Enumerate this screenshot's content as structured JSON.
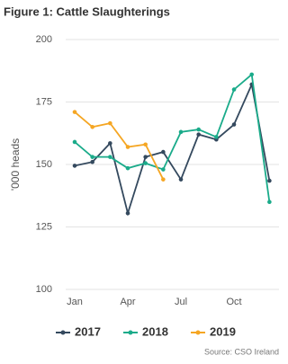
{
  "chart_data": {
    "type": "line",
    "title": "Figure 1: Cattle Slaughterings",
    "y_label": "'000 heads",
    "categories": [
      "Jan",
      null,
      null,
      "Apr",
      null,
      null,
      "Jul",
      null,
      null,
      "Oct",
      null,
      null
    ],
    "series": [
      {
        "name": "2017",
        "color": "#34495e",
        "values": [
          149.5,
          151,
          158.5,
          130.5,
          153,
          155,
          144,
          162,
          160,
          166,
          182,
          143.5
        ]
      },
      {
        "name": "2018",
        "color": "#1aab8a",
        "values": [
          159,
          153,
          153,
          148.5,
          150.5,
          148,
          163,
          164,
          161,
          180,
          186,
          135
        ]
      },
      {
        "name": "2019",
        "color": "#f5a623",
        "values": [
          171,
          165,
          166.5,
          157,
          158,
          144,
          null,
          null,
          null,
          null,
          null,
          null
        ]
      }
    ],
    "ylim": [
      100,
      200
    ],
    "yticks": [
      100,
      125,
      150,
      175,
      200
    ],
    "grid": true,
    "source": "Source: CSO Ireland"
  }
}
